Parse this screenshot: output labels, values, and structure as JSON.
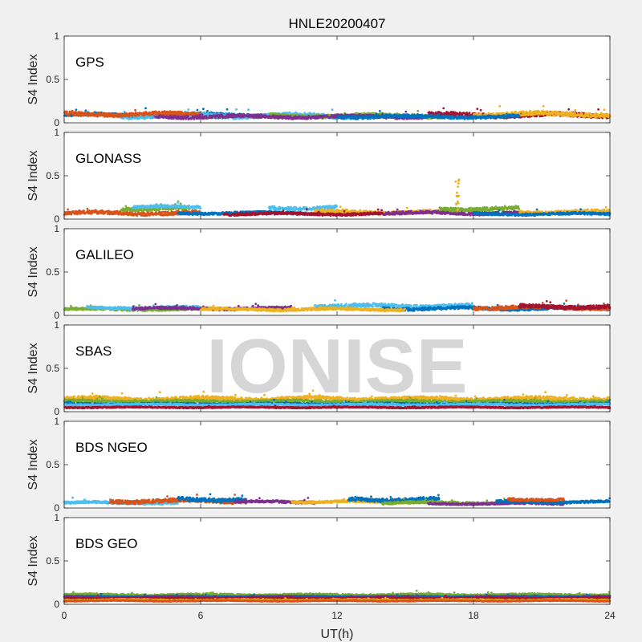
{
  "chart_data": {
    "type": "scatter",
    "title": "HNLE20200407",
    "watermark": "IONISE",
    "xlabel": "UT(h)",
    "xlim": [
      0,
      24
    ],
    "xticks": [
      0,
      6,
      12,
      18,
      24
    ],
    "ylim": [
      0,
      1
    ],
    "yticks": [
      0,
      0.5,
      1
    ],
    "ytick_labels": [
      "0",
      "0.5",
      "1"
    ],
    "series_colors": [
      "#0072BD",
      "#D95319",
      "#EDB120",
      "#7E2F8E",
      "#77AC30",
      "#4DBEEE",
      "#A2142F"
    ],
    "panels": [
      {
        "label": "GPS",
        "ylabel": "S4 Index",
        "tracks": [
          {
            "color": 0,
            "start": 0,
            "end": 9,
            "base": 0.09,
            "spread": 0.03
          },
          {
            "color": 5,
            "start": 2.5,
            "end": 14,
            "base": 0.08,
            "spread": 0.035
          },
          {
            "color": 1,
            "start": 0,
            "end": 6,
            "base": 0.1,
            "spread": 0.03
          },
          {
            "color": 4,
            "start": 9,
            "end": 17,
            "base": 0.08,
            "spread": 0.03
          },
          {
            "color": 3,
            "start": 4,
            "end": 16,
            "base": 0.07,
            "spread": 0.025
          },
          {
            "color": 6,
            "start": 16,
            "end": 24,
            "base": 0.09,
            "spread": 0.035
          },
          {
            "color": 2,
            "start": 18,
            "end": 24,
            "base": 0.1,
            "spread": 0.035
          },
          {
            "color": 0,
            "start": 12,
            "end": 20,
            "base": 0.07,
            "spread": 0.025
          }
        ]
      },
      {
        "label": "GLONASS",
        "ylabel": "S4 Index",
        "tracks": [
          {
            "color": 1,
            "start": 0,
            "end": 6,
            "base": 0.07,
            "spread": 0.03
          },
          {
            "color": 4,
            "start": 2.5,
            "end": 5.5,
            "base": 0.12,
            "spread": 0.03
          },
          {
            "color": 5,
            "start": 3,
            "end": 6,
            "base": 0.14,
            "spread": 0.02
          },
          {
            "color": 0,
            "start": 5,
            "end": 11,
            "base": 0.07,
            "spread": 0.02
          },
          {
            "color": 5,
            "start": 9,
            "end": 12,
            "base": 0.13,
            "spread": 0.03
          },
          {
            "color": 2,
            "start": 11,
            "end": 17,
            "base": 0.08,
            "spread": 0.03
          },
          {
            "color": 3,
            "start": 14,
            "end": 20,
            "base": 0.07,
            "spread": 0.025
          },
          {
            "color": 4,
            "start": 16.5,
            "end": 20,
            "base": 0.12,
            "spread": 0.03
          },
          {
            "color": 6,
            "start": 7,
            "end": 14,
            "base": 0.06,
            "spread": 0.02
          },
          {
            "color": 2,
            "start": 20,
            "end": 24,
            "base": 0.08,
            "spread": 0.03
          },
          {
            "color": 0,
            "start": 18,
            "end": 24,
            "base": 0.06,
            "spread": 0.02
          }
        ]
      },
      {
        "label": "GALILEO",
        "ylabel": "S4 Index",
        "tracks": [
          {
            "color": 4,
            "start": 0,
            "end": 7.5,
            "base": 0.07,
            "spread": 0.02
          },
          {
            "color": 5,
            "start": 1,
            "end": 6,
            "base": 0.09,
            "spread": 0.02
          },
          {
            "color": 3,
            "start": 3,
            "end": 10,
            "base": 0.08,
            "spread": 0.02
          },
          {
            "color": 5,
            "start": 11,
            "end": 18,
            "base": 0.11,
            "spread": 0.03
          },
          {
            "color": 0,
            "start": 14,
            "end": 24,
            "base": 0.08,
            "spread": 0.025
          },
          {
            "color": 2,
            "start": 6,
            "end": 15,
            "base": 0.07,
            "spread": 0.02
          },
          {
            "color": 1,
            "start": 18,
            "end": 24,
            "base": 0.09,
            "spread": 0.03
          },
          {
            "color": 6,
            "start": 20,
            "end": 24,
            "base": 0.1,
            "spread": 0.03
          }
        ]
      },
      {
        "label": "SBAS",
        "ylabel": "S4 Index",
        "tracks": [
          {
            "color": 2,
            "start": 0,
            "end": 24,
            "base": 0.15,
            "spread": 0.03
          },
          {
            "color": 4,
            "start": 0,
            "end": 24,
            "base": 0.12,
            "spread": 0.02
          },
          {
            "color": 0,
            "start": 0,
            "end": 24,
            "base": 0.09,
            "spread": 0.015
          },
          {
            "color": 5,
            "start": 0,
            "end": 24,
            "base": 0.08,
            "spread": 0.015
          },
          {
            "color": 6,
            "start": 0,
            "end": 24,
            "base": 0.05,
            "spread": 0.01
          }
        ]
      },
      {
        "label": "BDS NGEO",
        "ylabel": "S4 Index",
        "tracks": [
          {
            "color": 5,
            "start": 0,
            "end": 5,
            "base": 0.06,
            "spread": 0.02
          },
          {
            "color": 1,
            "start": 2,
            "end": 8,
            "base": 0.08,
            "spread": 0.03
          },
          {
            "color": 0,
            "start": 5,
            "end": 8,
            "base": 0.1,
            "spread": 0.03
          },
          {
            "color": 3,
            "start": 7.5,
            "end": 11,
            "base": 0.07,
            "spread": 0.02
          },
          {
            "color": 2,
            "start": 10,
            "end": 15,
            "base": 0.07,
            "spread": 0.02
          },
          {
            "color": 0,
            "start": 12.5,
            "end": 16.5,
            "base": 0.1,
            "spread": 0.03
          },
          {
            "color": 4,
            "start": 14,
            "end": 22,
            "base": 0.06,
            "spread": 0.02
          },
          {
            "color": 3,
            "start": 16,
            "end": 22,
            "base": 0.05,
            "spread": 0.015
          },
          {
            "color": 0,
            "start": 19,
            "end": 24,
            "base": 0.07,
            "spread": 0.02
          },
          {
            "color": 1,
            "start": 19.5,
            "end": 22,
            "base": 0.1,
            "spread": 0.02
          }
        ]
      },
      {
        "label": "BDS GEO",
        "ylabel": "S4 Index",
        "tracks": [
          {
            "color": 4,
            "start": 0,
            "end": 24,
            "base": 0.11,
            "spread": 0.015
          },
          {
            "color": 0,
            "start": 0,
            "end": 24,
            "base": 0.09,
            "spread": 0.01
          },
          {
            "color": 3,
            "start": 0,
            "end": 24,
            "base": 0.08,
            "spread": 0.01
          },
          {
            "color": 6,
            "start": 0,
            "end": 24,
            "base": 0.07,
            "spread": 0.01
          },
          {
            "color": 2,
            "start": 0,
            "end": 24,
            "base": 0.05,
            "spread": 0.01
          },
          {
            "color": 1,
            "start": 0,
            "end": 24,
            "base": 0.04,
            "spread": 0.008
          }
        ]
      }
    ]
  }
}
